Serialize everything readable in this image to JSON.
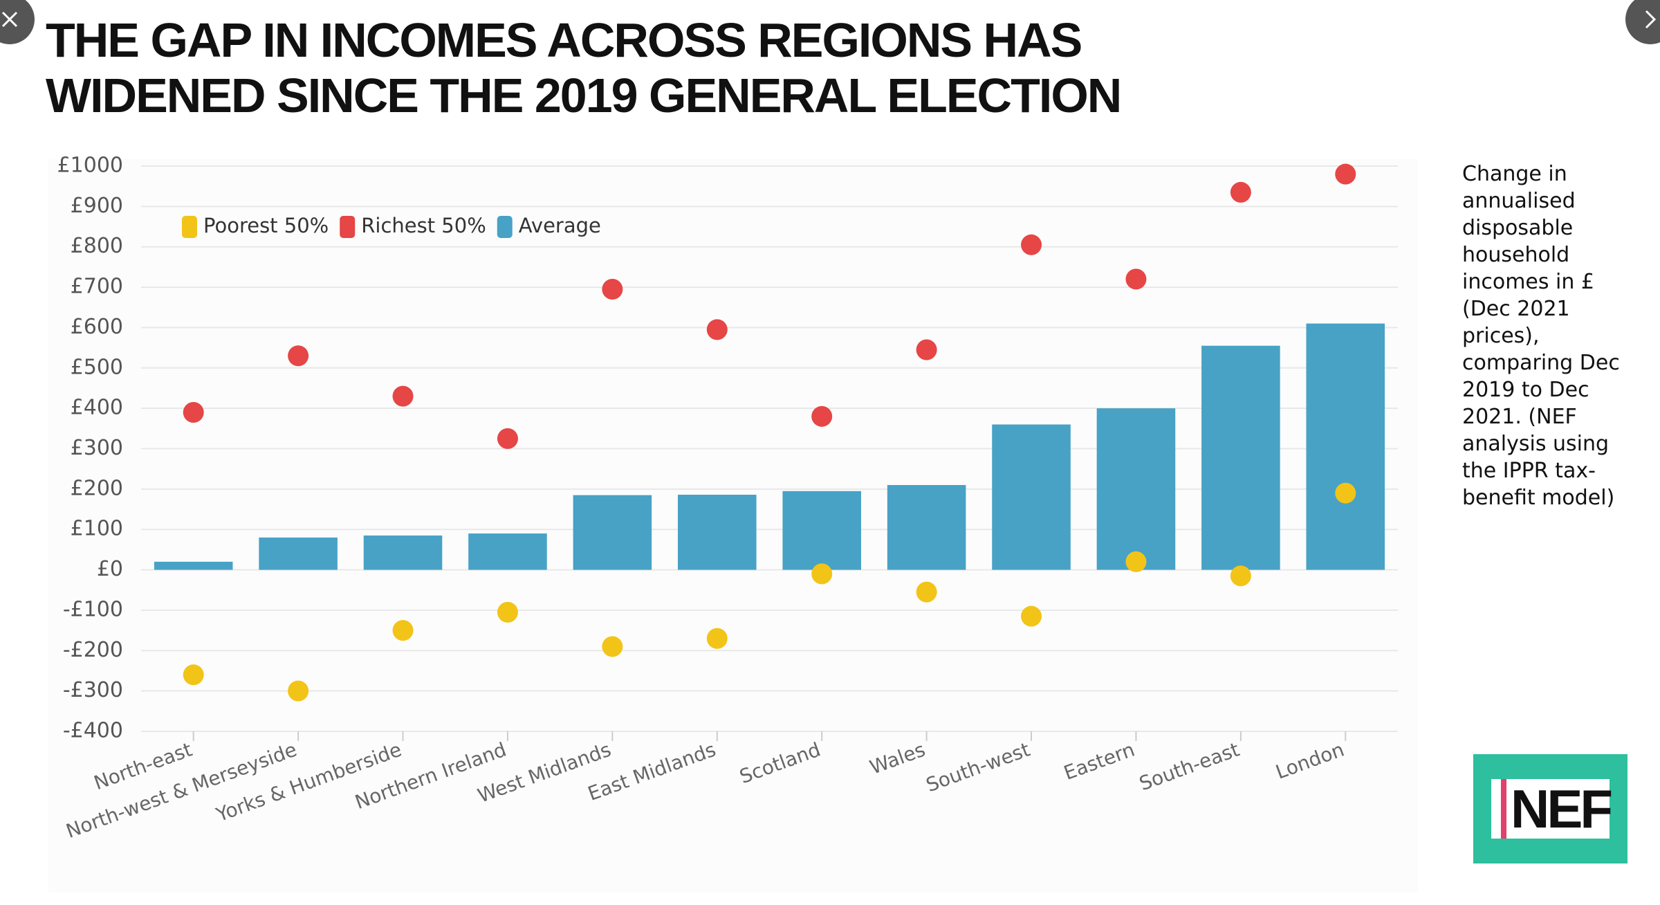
{
  "chart_data": {
    "type": "bar",
    "title": "THE GAP IN INCOMES ACROSS REGIONS HAS WIDENED SINCE THE 2019 GENERAL ELECTION",
    "note": "Change in annualised disposable household incomes in £ (Dec 2021 prices), comparing Dec 2019 to Dec 2021. (NEF analysis using the IPPR tax-benefit model)",
    "logo": "NEF",
    "categories": [
      "North-east",
      "North-west & Merseyside",
      "Yorks & Humberside",
      "Northern Ireland",
      "West Midlands",
      "East Midlands",
      "Scotland",
      "Wales",
      "South-west",
      "Eastern",
      "South-east",
      "London"
    ],
    "series": [
      {
        "name": "Poorest 50%",
        "color": "#f2c418",
        "mark": "dot",
        "values": [
          -260,
          -300,
          -150,
          -105,
          -190,
          -170,
          -10,
          -55,
          -115,
          20,
          -15,
          190
        ]
      },
      {
        "name": "Richest 50%",
        "color": "#e64646",
        "mark": "dot",
        "values": [
          390,
          530,
          430,
          325,
          695,
          595,
          380,
          545,
          805,
          720,
          935,
          980
        ]
      },
      {
        "name": "Average",
        "color": "#47a2c6",
        "mark": "bar",
        "values": [
          20,
          80,
          85,
          90,
          185,
          186,
          195,
          210,
          360,
          400,
          555,
          610
        ]
      }
    ],
    "ylim": [
      -400,
      1000
    ],
    "yticks": [
      {
        "value": -400,
        "label": "-£400"
      },
      {
        "value": -300,
        "label": "-£300"
      },
      {
        "value": -200,
        "label": "-£200"
      },
      {
        "value": -100,
        "label": "-£100"
      },
      {
        "value": 0,
        "label": "£0"
      },
      {
        "value": 100,
        "label": "£100"
      },
      {
        "value": 200,
        "label": "£200"
      },
      {
        "value": 300,
        "label": "£300"
      },
      {
        "value": 400,
        "label": "£400"
      },
      {
        "value": 500,
        "label": "£500"
      },
      {
        "value": 600,
        "label": "£600"
      },
      {
        "value": 700,
        "label": "£700"
      },
      {
        "value": 800,
        "label": "£800"
      },
      {
        "value": 900,
        "label": "£900"
      },
      {
        "value": 1000,
        "label": "£1000"
      }
    ],
    "grid": true
  }
}
